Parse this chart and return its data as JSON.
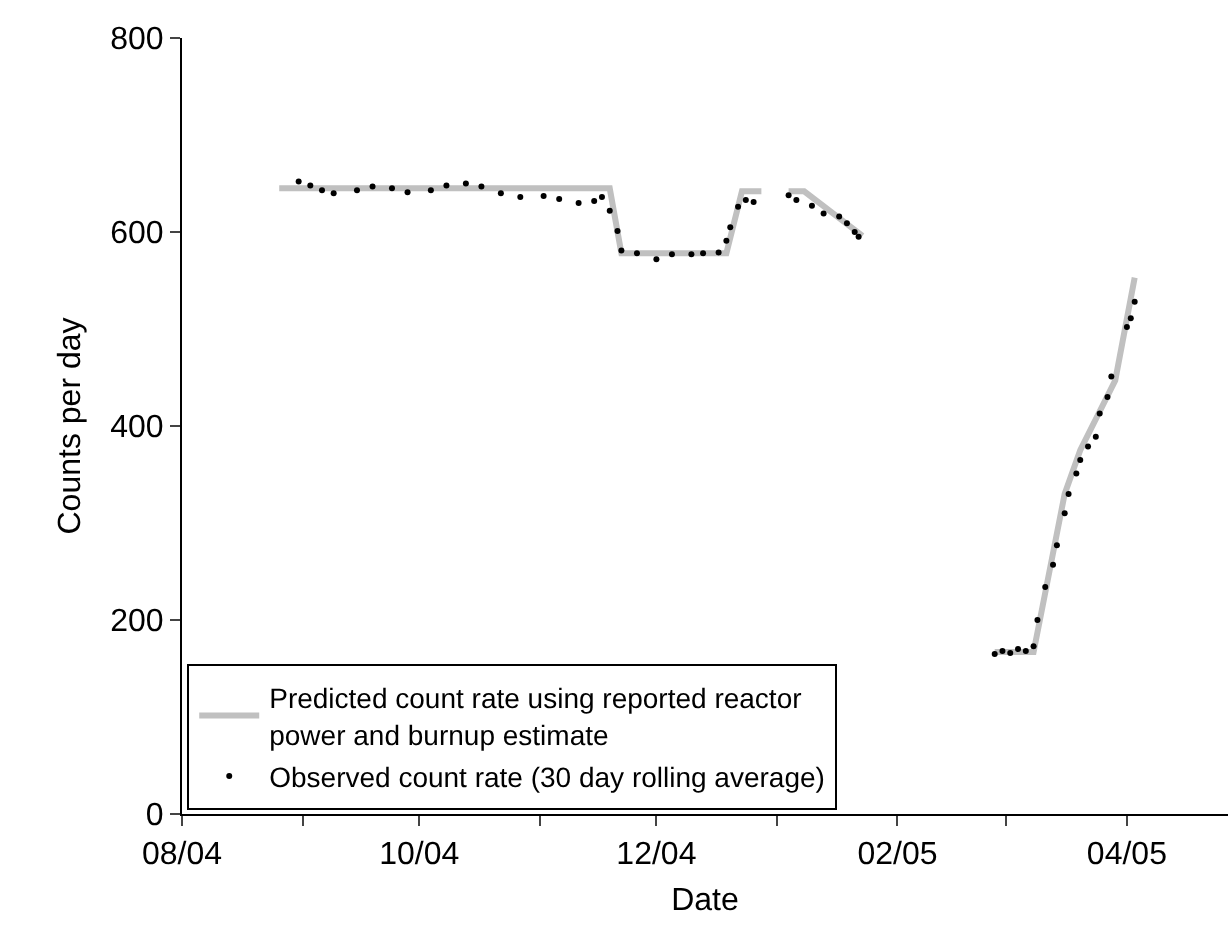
{
  "chart_data": {
    "type": "line",
    "xlabel": "Date",
    "ylabel": "Counts per day",
    "x": [
      "2004-08-26",
      "2004-11-19",
      "2004-11-22",
      "2004-12-19",
      "2004-12-23",
      "2004-12-28",
      "2004-12-31",
      "2005-01-04",
      "2005-01-08",
      "2005-01-23",
      "2005-02-10",
      "2005-02-26",
      "2005-03-08",
      "2005-03-16",
      "2005-03-20",
      "2005-03-29",
      "2005-04-03"
    ],
    "series": [
      {
        "name": "Predicted count rate using reported reactor power and burnup estimate",
        "type": "line",
        "color": "#c0c0c0",
        "values": [
          645,
          645,
          578,
          578,
          642,
          642,
          null,
          642,
          642,
          596,
          null,
          167,
          167,
          330,
          375,
          447,
          553
        ]
      },
      {
        "name": "Observed count rate (30 day rolling average)",
        "type": "scatter",
        "marker": "circle",
        "color": "#000000",
        "x": [
          "2004-08-31",
          "2004-09-03",
          "2004-09-06",
          "2004-09-09",
          "2004-09-15",
          "2004-09-19",
          "2004-09-24",
          "2004-09-28",
          "2004-10-04",
          "2004-10-08",
          "2004-10-13",
          "2004-10-17",
          "2004-10-22",
          "2004-10-27",
          "2004-11-02",
          "2004-11-06",
          "2004-11-11",
          "2004-11-15",
          "2004-11-17",
          "2004-11-19",
          "2004-11-21",
          "2004-11-22",
          "2004-11-26",
          "2004-12-01",
          "2004-12-05",
          "2004-12-10",
          "2004-12-13",
          "2004-12-17",
          "2004-12-19",
          "2004-12-20",
          "2004-12-22",
          "2004-12-24",
          "2004-12-26",
          "2005-01-04",
          "2005-01-06",
          "2005-01-10",
          "2005-01-13",
          "2005-01-17",
          "2005-01-19",
          "2005-01-21",
          "2005-01-22",
          "2005-02-26",
          "2005-02-28",
          "2005-03-02",
          "2005-03-04",
          "2005-03-06",
          "2005-03-08",
          "2005-03-09",
          "2005-03-11",
          "2005-03-13",
          "2005-03-14",
          "2005-03-16",
          "2005-03-17",
          "2005-03-19",
          "2005-03-20",
          "2005-03-22",
          "2005-03-24",
          "2005-03-25",
          "2005-03-27",
          "2005-03-28",
          "2005-04-01",
          "2005-04-02",
          "2005-04-03"
        ],
        "values": [
          652,
          648,
          643,
          640,
          643,
          647,
          645,
          641,
          643,
          648,
          650,
          647,
          640,
          636,
          637,
          634,
          630,
          632,
          636,
          622,
          601,
          581,
          578,
          572,
          577,
          577,
          578,
          579,
          591,
          605,
          626,
          633,
          631,
          638,
          633,
          627,
          619,
          616,
          609,
          600,
          595,
          165,
          168,
          166,
          170,
          168,
          173,
          200,
          234,
          257,
          277,
          310,
          330,
          351,
          365,
          379,
          389,
          413,
          430,
          451,
          502,
          511,
          528
        ]
      }
    ],
    "xlim": [
      "2004-08-01",
      "2005-04-27"
    ],
    "xticks": [
      {
        "value": "2004-08-01",
        "label": "08/04"
      },
      {
        "value": "2004-09-01",
        "label": null
      },
      {
        "value": "2004-10-01",
        "label": "10/04"
      },
      {
        "value": "2004-11-01",
        "label": null
      },
      {
        "value": "2004-12-01",
        "label": "12/04"
      },
      {
        "value": "2005-01-01",
        "label": null
      },
      {
        "value": "2005-02-01",
        "label": "02/05"
      },
      {
        "value": "2005-03-01",
        "label": null
      },
      {
        "value": "2005-04-01",
        "label": "04/05"
      }
    ],
    "ylim": [
      0,
      800
    ],
    "yticks": [
      0,
      200,
      400,
      600,
      800
    ],
    "grid": false,
    "legend": "bottom left"
  }
}
